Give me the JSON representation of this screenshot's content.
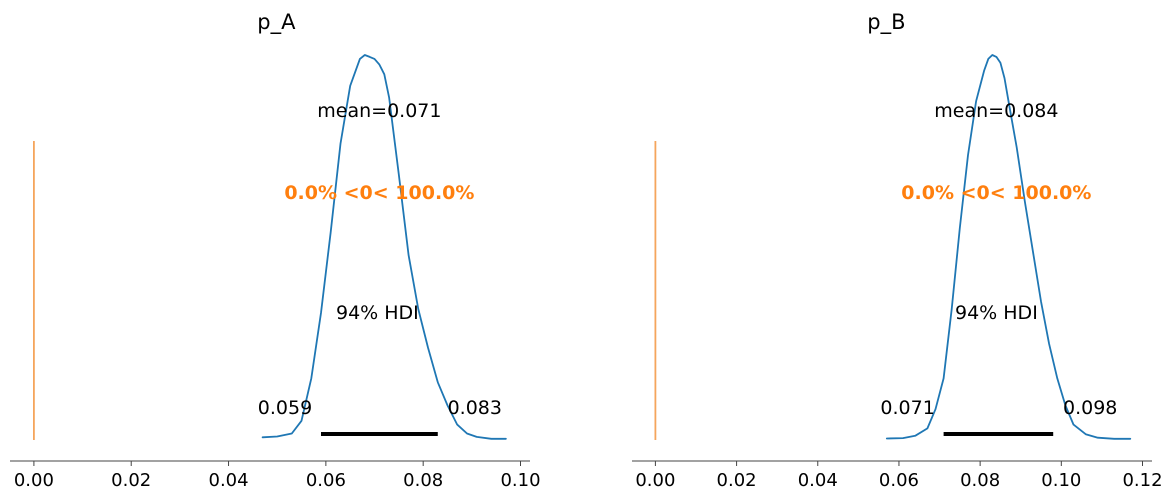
{
  "chart_data": [
    {
      "type": "area",
      "title": "p_A",
      "xlabel": "",
      "ylabel": "",
      "xlim": [
        -0.005,
        0.102
      ],
      "xticks": [
        0.0,
        0.02,
        0.04,
        0.06,
        0.08,
        0.1
      ],
      "xtick_labels": [
        "0.00",
        "0.02",
        "0.04",
        "0.06",
        "0.08",
        "0.10"
      ],
      "grid": false,
      "density": {
        "x": [
          0.047,
          0.05,
          0.053,
          0.055,
          0.057,
          0.059,
          0.061,
          0.063,
          0.065,
          0.067,
          0.068,
          0.069,
          0.07,
          0.071,
          0.072,
          0.073,
          0.075,
          0.077,
          0.079,
          0.081,
          0.083,
          0.085,
          0.087,
          0.089,
          0.091,
          0.094,
          0.097
        ],
        "y": [
          0.007,
          0.009,
          0.017,
          0.05,
          0.16,
          0.33,
          0.54,
          0.77,
          0.92,
          0.99,
          1.0,
          0.995,
          0.99,
          0.975,
          0.95,
          0.89,
          0.69,
          0.48,
          0.34,
          0.24,
          0.15,
          0.09,
          0.04,
          0.017,
          0.008,
          0.003,
          0.003
        ]
      },
      "mean": 0.071,
      "mean_label": "mean=0.071",
      "ref_val": 0,
      "ref_label": "0.0% <0< 100.0%",
      "hdi": {
        "low": 0.059,
        "high": 0.083,
        "prob_label": "94% HDI",
        "low_label": "0.059",
        "high_label": "0.083"
      },
      "colors": {
        "density": "#1f77b4",
        "ref_line": "#f5a55c",
        "ref_text": "#ff7f0e",
        "hdi_bar": "#000000"
      }
    },
    {
      "type": "area",
      "title": "p_B",
      "xlabel": "",
      "ylabel": "",
      "xlim": [
        -0.006,
        0.122
      ],
      "xticks": [
        0.0,
        0.02,
        0.04,
        0.06,
        0.08,
        0.1,
        0.12
      ],
      "xtick_labels": [
        "0.00",
        "0.02",
        "0.04",
        "0.06",
        "0.08",
        "0.10",
        "0.12"
      ],
      "grid": false,
      "density": {
        "x": [
          0.057,
          0.061,
          0.064,
          0.067,
          0.069,
          0.071,
          0.073,
          0.075,
          0.077,
          0.079,
          0.081,
          0.082,
          0.083,
          0.084,
          0.085,
          0.086,
          0.087,
          0.089,
          0.091,
          0.093,
          0.095,
          0.097,
          0.099,
          0.101,
          0.103,
          0.106,
          0.109,
          0.113,
          0.117
        ],
        "y": [
          0.004,
          0.005,
          0.011,
          0.03,
          0.08,
          0.16,
          0.34,
          0.55,
          0.74,
          0.88,
          0.96,
          0.99,
          1.0,
          0.995,
          0.98,
          0.94,
          0.88,
          0.76,
          0.62,
          0.49,
          0.36,
          0.25,
          0.16,
          0.09,
          0.04,
          0.015,
          0.006,
          0.003,
          0.003
        ]
      },
      "mean": 0.084,
      "mean_label": "mean=0.084",
      "ref_val": 0,
      "ref_label": "0.0% <0< 100.0%",
      "hdi": {
        "low": 0.071,
        "high": 0.098,
        "prob_label": "94% HDI",
        "low_label": "0.071",
        "high_label": "0.098"
      },
      "colors": {
        "density": "#1f77b4",
        "ref_line": "#f5a55c",
        "ref_text": "#ff7f0e",
        "hdi_bar": "#000000"
      }
    }
  ]
}
